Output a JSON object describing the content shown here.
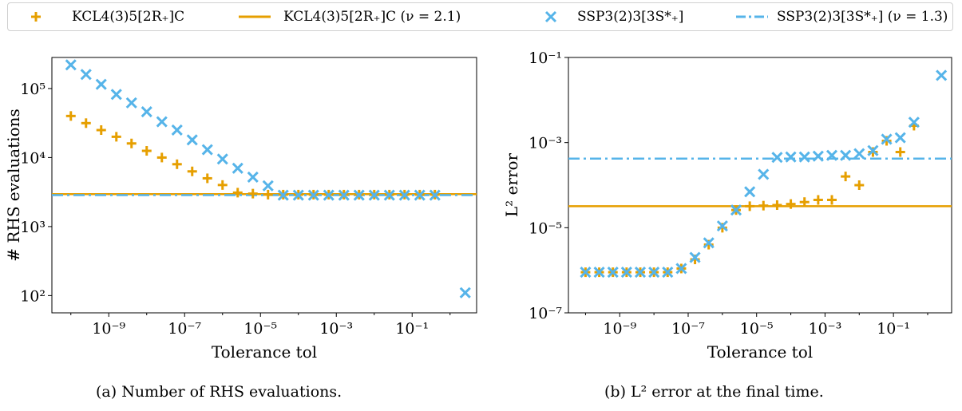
{
  "colors": {
    "orange": "#e69f00",
    "blue": "#56b4e9"
  },
  "legend": [
    {
      "label": "KCL4(3)5[2R₊]C",
      "marker": "plus",
      "color": "#e69f00"
    },
    {
      "label": "KCL4(3)5[2R₊]C (ν = 2.1)",
      "marker": "solid-line",
      "color": "#e69f00"
    },
    {
      "label": "SSP3(2)3[3S*₊]",
      "marker": "cross",
      "color": "#56b4e9"
    },
    {
      "label": "SSP3(2)3[3S*₊] (ν = 1.3)",
      "marker": "dashdot-line",
      "color": "#56b4e9"
    }
  ],
  "captions": {
    "a": "(a) Number of RHS evaluations.",
    "b": "(b) L² error at the final time."
  },
  "chart_data": [
    {
      "type": "scatter",
      "xlabel": "Tolerance tol",
      "ylabel": "# RHS evaluations",
      "xscale": "log",
      "yscale": "log",
      "xlim_log10": [
        -10.5,
        0.7
      ],
      "ylim_log10": [
        1.75,
        5.45
      ],
      "xticks": [
        "10⁻⁹",
        "10⁻⁷",
        "10⁻⁵",
        "10⁻³",
        "10⁻¹"
      ],
      "yticks": [
        "10²",
        "10³",
        "10⁴",
        "10⁵"
      ],
      "series": [
        {
          "name": "KCL4(3)5[2R₊]C",
          "marker": "plus",
          "x_log10": [
            -10,
            -9.6,
            -9.2,
            -8.8,
            -8.4,
            -8,
            -7.6,
            -7.2,
            -6.8,
            -6.4,
            -6,
            -5.6,
            -5.2,
            -4.8,
            -4.4,
            -4,
            -3.6,
            -3.2,
            -2.8,
            -2.4,
            -2,
            -1.6,
            -1.2,
            -0.8,
            -0.4
          ],
          "y": [
            40000,
            31500,
            25000,
            20000,
            16000,
            12500,
            10000,
            8000,
            6300,
            5000,
            4000,
            3100,
            3000,
            2900,
            2900,
            2900,
            2900,
            2900,
            2900,
            2900,
            2900,
            2900,
            2900,
            2900,
            2900
          ]
        },
        {
          "name": "SSP3(2)3[3S*₊]",
          "marker": "cross",
          "x_log10": [
            -10,
            -9.6,
            -9.2,
            -8.8,
            -8.4,
            -8,
            -7.6,
            -7.2,
            -6.8,
            -6.4,
            -6,
            -5.6,
            -5.2,
            -4.8,
            -4.4,
            -4,
            -3.6,
            -3.2,
            -2.8,
            -2.4,
            -2,
            -1.6,
            -1.2,
            -0.8,
            -0.4,
            0.4
          ],
          "y": [
            220000,
            160000,
            115000,
            82000,
            62000,
            46000,
            33000,
            25000,
            18000,
            13000,
            9500,
            7000,
            5200,
            3900,
            2850,
            2850,
            2850,
            2850,
            2850,
            2850,
            2850,
            2850,
            2850,
            2850,
            2850,
            110
          ]
        }
      ],
      "hlines": [
        {
          "name": "KCL4(3)5[2R₊]C (ν = 2.1)",
          "y": 2950,
          "style": "solid"
        },
        {
          "name": "SSP3(2)3[3S*₊] (ν = 1.3)",
          "y": 2850,
          "style": "dashdot"
        }
      ]
    },
    {
      "type": "scatter",
      "xlabel": "Tolerance tol",
      "ylabel": "L² error",
      "xscale": "log",
      "yscale": "log",
      "xlim_log10": [
        -10.5,
        0.7
      ],
      "ylim_log10": [
        -7,
        -1
      ],
      "xticks": [
        "10⁻⁹",
        "10⁻⁷",
        "10⁻⁵",
        "10⁻³",
        "10⁻¹"
      ],
      "yticks": [
        "10⁻¹",
        "10⁻³",
        "10⁻⁵",
        "10⁻⁷"
      ],
      "series": [
        {
          "name": "KCL4(3)5[2R₊]C",
          "marker": "plus",
          "x_log10": [
            -10,
            -9.6,
            -9.2,
            -8.8,
            -8.4,
            -8,
            -7.6,
            -7.2,
            -6.8,
            -6.4,
            -6,
            -5.6,
            -5.2,
            -4.8,
            -4.4,
            -4,
            -3.6,
            -3.2,
            -2.8,
            -2.4,
            -2,
            -1.6,
            -1.2,
            -0.8,
            -0.4
          ],
          "y": [
            9e-07,
            9e-07,
            9e-07,
            9e-07,
            9e-07,
            9e-07,
            9e-07,
            1.1e-06,
            1.8e-06,
            4e-06,
            1e-05,
            2.6e-05,
            3.2e-05,
            3.3e-05,
            3.4e-05,
            3.6e-05,
            4e-05,
            4.5e-05,
            4.5e-05,
            0.00016,
            0.0001,
            0.0006,
            0.0011,
            0.0006,
            0.0025
          ]
        },
        {
          "name": "SSP3(2)3[3S*₊]",
          "marker": "cross",
          "x_log10": [
            -10,
            -9.6,
            -9.2,
            -8.8,
            -8.4,
            -8,
            -7.6,
            -7.2,
            -6.8,
            -6.4,
            -6,
            -5.6,
            -5.2,
            -4.8,
            -4.4,
            -4,
            -3.6,
            -3.2,
            -2.8,
            -2.4,
            -2,
            -1.6,
            -1.2,
            -0.8,
            -0.4,
            0.4
          ],
          "y": [
            9e-07,
            9e-07,
            9e-07,
            9e-07,
            9e-07,
            9e-07,
            9e-07,
            1.1e-06,
            2e-06,
            4.4e-06,
            1.1e-05,
            2.6e-05,
            7e-05,
            0.00018,
            0.00045,
            0.00046,
            0.00046,
            0.00048,
            0.0005,
            0.0005,
            0.00055,
            0.00065,
            0.0012,
            0.0013,
            0.003,
            0.038
          ]
        }
      ],
      "hlines": [
        {
          "name": "KCL4(3)5[2R₊]C (ν = 2.1)",
          "y": 3.2e-05,
          "style": "solid"
        },
        {
          "name": "SSP3(2)3[3S*₊] (ν = 1.3)",
          "y": 0.00042,
          "style": "dashdot"
        }
      ]
    }
  ]
}
